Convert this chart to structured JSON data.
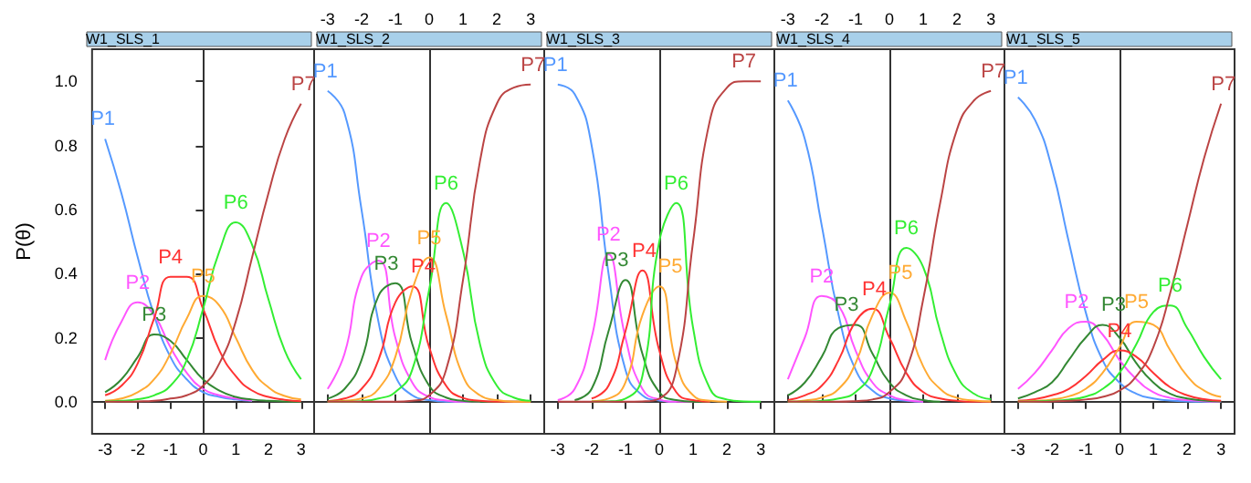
{
  "chart_data": [
    {
      "type": "line",
      "title": "W1_SLS_1",
      "ylabel": "P(θ)",
      "marker": "none",
      "xlim": [
        -3.4,
        3.4
      ],
      "xticks": [
        -3,
        -2,
        -1,
        0,
        1,
        2,
        3
      ],
      "ylim": [
        -0.1,
        1.1
      ],
      "yticks": [
        {
          "value": 0,
          "label": "0.0"
        },
        {
          "value": 0.2,
          "label": "0.2"
        },
        {
          "value": 0.4,
          "label": "0.4"
        },
        {
          "value": 0.6,
          "label": "0.6"
        },
        {
          "value": 0.8,
          "label": "0.8"
        },
        {
          "value": 1,
          "label": "1.0"
        }
      ],
      "x": [
        -3,
        -2.5,
        -2,
        -1.5,
        -1,
        -0.5,
        0,
        0.5,
        1,
        1.5,
        2,
        2.5,
        3
      ],
      "series": [
        {
          "name": "P1",
          "color": "#5599ff",
          "values": [
            0.82,
            0.65,
            0.45,
            0.27,
            0.14,
            0.07,
            0.03,
            0.015,
            0.007,
            0.003,
            null,
            null,
            null
          ]
        },
        {
          "name": "P2",
          "color": "#ff55ff",
          "values": [
            0.13,
            0.25,
            0.31,
            0.27,
            0.17,
            0.09,
            0.04,
            0.02,
            0.01,
            0.004,
            null,
            null,
            null
          ]
        },
        {
          "name": "P3",
          "color": "#338833",
          "values": [
            0.03,
            0.07,
            0.14,
            0.21,
            0.19,
            0.13,
            0.07,
            0.035,
            0.015,
            0.007,
            0.003,
            0.001,
            0
          ]
        },
        {
          "name": "P4",
          "color": "#ff3333",
          "values": [
            0.02,
            0.05,
            0.12,
            0.26,
            0.39,
            0.39,
            0.29,
            0.16,
            0.08,
            0.035,
            0.015,
            0.006,
            0.002
          ]
        },
        {
          "name": "P5",
          "color": "#ffaa33",
          "values": [
            0.003,
            0.01,
            0.03,
            0.07,
            0.15,
            0.26,
            0.33,
            0.3,
            0.2,
            0.1,
            0.045,
            0.018,
            0.007
          ]
        },
        {
          "name": "P6",
          "color": "#33ee33",
          "values": [
            0.001,
            0.003,
            0.008,
            0.02,
            0.05,
            0.13,
            0.29,
            0.47,
            0.56,
            0.49,
            0.32,
            0.16,
            0.07
          ]
        },
        {
          "name": "P7",
          "color": "#bb4444",
          "values": [
            0,
            0,
            0.001,
            0.003,
            0.01,
            0.02,
            0.05,
            0.12,
            0.25,
            0.45,
            0.65,
            0.82,
            0.93
          ]
        }
      ]
    },
    {
      "type": "line",
      "title": "W1_SLS_2",
      "marker": "none",
      "tick_labels": "x",
      "xlim": [
        -3.4,
        3.4
      ],
      "xticks": [
        -3,
        -2,
        -1,
        0,
        1,
        2,
        3
      ],
      "ylim": [
        -0.1,
        1.1
      ],
      "x": [
        -3,
        -2.5,
        -2,
        -1.5,
        -1,
        -0.5,
        0,
        0.5,
        1,
        1.5,
        2,
        2.5,
        3
      ],
      "series": [
        {
          "name": "P1",
          "color": "#5599ff",
          "values": [
            0.97,
            0.9,
            0.6,
            0.25,
            0.08,
            0.02,
            0.005,
            0,
            0,
            0,
            null,
            null,
            null
          ]
        },
        {
          "name": "P2",
          "color": "#ff55ff",
          "values": [
            0.04,
            0.15,
            0.39,
            0.44,
            0.2,
            0.06,
            0.015,
            0.004,
            0,
            0,
            null,
            null,
            null
          ]
        },
        {
          "name": "P3",
          "color": "#338833",
          "values": [
            0.01,
            0.04,
            0.13,
            0.33,
            0.37,
            0.18,
            0.05,
            0.013,
            0.003,
            0,
            0,
            0,
            0
          ]
        },
        {
          "name": "P4",
          "color": "#ff3333",
          "values": [
            0.002,
            0.01,
            0.04,
            0.13,
            0.31,
            0.36,
            0.17,
            0.05,
            0.012,
            0.003,
            0,
            0,
            0
          ]
        },
        {
          "name": "P5",
          "color": "#ffaa33",
          "values": [
            0,
            0.003,
            0.01,
            0.04,
            0.14,
            0.35,
            0.45,
            0.27,
            0.08,
            0.02,
            0.005,
            0,
            0
          ]
        },
        {
          "name": "P6",
          "color": "#33ee33",
          "values": [
            0,
            0,
            0.002,
            0.01,
            0.03,
            0.1,
            0.35,
            0.62,
            0.47,
            0.18,
            0.05,
            0.013,
            0.003
          ]
        },
        {
          "name": "P7",
          "color": "#bb4444",
          "values": [
            0,
            0,
            0,
            0,
            0,
            0.003,
            0.02,
            0.1,
            0.38,
            0.75,
            0.93,
            0.98,
            0.99
          ]
        }
      ]
    },
    {
      "type": "line",
      "title": "W1_SLS_3",
      "marker": "none",
      "tick_labels": "x",
      "xlim": [
        -3.4,
        3.4
      ],
      "xticks": [
        -3,
        -2,
        -1,
        0,
        1,
        2,
        3
      ],
      "ylim": [
        -0.1,
        1.1
      ],
      "x": [
        -3,
        -2.5,
        -2,
        -1.5,
        -1,
        -0.5,
        0,
        0.5,
        1,
        1.5,
        2,
        2.5,
        3
      ],
      "series": [
        {
          "name": "P1",
          "color": "#5599ff",
          "values": [
            0.99,
            0.96,
            0.8,
            0.4,
            0.1,
            0.02,
            0.004,
            0,
            null,
            null,
            null,
            null,
            null
          ]
        },
        {
          "name": "P2",
          "color": "#ff55ff",
          "values": [
            0.005,
            0.04,
            0.2,
            0.46,
            0.2,
            0.04,
            0.007,
            0,
            0,
            null,
            null,
            null,
            null
          ]
        },
        {
          "name": "P3",
          "color": "#338833",
          "values": [
            null,
            0.005,
            0.04,
            0.22,
            0.38,
            0.15,
            0.03,
            0.005,
            0,
            0,
            null,
            null,
            null
          ]
        },
        {
          "name": "P4",
          "color": "#ff3333",
          "values": [
            null,
            null,
            0.01,
            0.05,
            0.22,
            0.41,
            0.16,
            0.03,
            0.005,
            0,
            null,
            null,
            null
          ]
        },
        {
          "name": "P5",
          "color": "#ffaa33",
          "values": [
            null,
            null,
            0.002,
            0.01,
            0.06,
            0.27,
            0.36,
            0.12,
            0.02,
            0.003,
            0,
            null,
            null
          ]
        },
        {
          "name": "P6",
          "color": "#33ee33",
          "values": [
            null,
            null,
            0,
            0.001,
            0.01,
            0.08,
            0.5,
            0.62,
            0.23,
            0.04,
            0.007,
            0.001,
            0
          ]
        },
        {
          "name": "P7",
          "color": "#bb4444",
          "values": [
            0,
            0,
            0,
            0,
            0,
            0.001,
            0.01,
            0.1,
            0.5,
            0.88,
            0.98,
            1,
            1
          ]
        }
      ]
    },
    {
      "type": "line",
      "title": "W1_SLS_4",
      "marker": "none",
      "tick_labels": "x",
      "xlim": [
        -3.4,
        3.4
      ],
      "xticks": [
        -3,
        -2,
        -1,
        0,
        1,
        2,
        3
      ],
      "ylim": [
        -0.1,
        1.1
      ],
      "x": [
        -3,
        -2.5,
        -2,
        -1.5,
        -1,
        -0.5,
        0,
        0.5,
        1,
        1.5,
        2,
        2.5,
        3
      ],
      "series": [
        {
          "name": "P1",
          "color": "#5599ff",
          "values": [
            0.94,
            0.82,
            0.55,
            0.27,
            0.1,
            0.035,
            0.01,
            0.003,
            0,
            null,
            null,
            null,
            null
          ]
        },
        {
          "name": "P2",
          "color": "#ff55ff",
          "values": [
            0.07,
            0.2,
            0.33,
            0.3,
            0.16,
            0.06,
            0.02,
            0.005,
            0,
            null,
            null,
            null,
            null
          ]
        },
        {
          "name": "P3",
          "color": "#338833",
          "values": [
            0.02,
            0.06,
            0.14,
            0.23,
            0.24,
            0.15,
            0.06,
            0.02,
            0.005,
            0,
            null,
            null,
            null
          ]
        },
        {
          "name": "P4",
          "color": "#ff3333",
          "values": [
            0.005,
            0.02,
            0.05,
            0.13,
            0.25,
            0.29,
            0.2,
            0.09,
            0.03,
            0.01,
            0.003,
            0,
            0
          ]
        },
        {
          "name": "P5",
          "color": "#ffaa33",
          "values": [
            0,
            0.004,
            0.013,
            0.04,
            0.12,
            0.27,
            0.34,
            0.25,
            0.11,
            0.04,
            0.012,
            0.004,
            0.001
          ]
        },
        {
          "name": "P6",
          "color": "#33ee33",
          "values": [
            0,
            0,
            0.003,
            0.01,
            0.03,
            0.1,
            0.3,
            0.48,
            0.42,
            0.22,
            0.08,
            0.025,
            0.008
          ]
        },
        {
          "name": "P7",
          "color": "#bb4444",
          "values": [
            0,
            0,
            0,
            0,
            0.002,
            0.007,
            0.03,
            0.1,
            0.32,
            0.62,
            0.85,
            0.94,
            0.97
          ]
        }
      ]
    },
    {
      "type": "line",
      "title": "W1_SLS_5",
      "marker": "none",
      "tick_labels": "x",
      "xlim": [
        -3.4,
        3.4
      ],
      "xticks": [
        -3,
        -2,
        -1,
        0,
        1,
        2,
        3
      ],
      "ylim": [
        -0.1,
        1.1
      ],
      "x": [
        -3,
        -2.5,
        -2,
        -1.5,
        -1,
        -0.5,
        0,
        0.5,
        1,
        1.5,
        2,
        2.5,
        3
      ],
      "series": [
        {
          "name": "P1",
          "color": "#5599ff",
          "values": [
            0.95,
            0.88,
            0.73,
            0.5,
            0.28,
            0.13,
            0.06,
            0.025,
            0.01,
            0.004,
            0.001,
            0,
            0
          ]
        },
        {
          "name": "P2",
          "color": "#ff55ff",
          "values": [
            0.04,
            0.09,
            0.16,
            0.23,
            0.25,
            0.21,
            0.13,
            0.07,
            0.03,
            0.012,
            0.005,
            0.002,
            0
          ]
        },
        {
          "name": "P3",
          "color": "#338833",
          "values": [
            0.01,
            0.03,
            0.06,
            0.13,
            0.2,
            0.24,
            0.2,
            0.12,
            0.06,
            0.025,
            0.01,
            0.004,
            0.001
          ]
        },
        {
          "name": "P4",
          "color": "#ff3333",
          "values": [
            0.003,
            0.008,
            0.02,
            0.04,
            0.08,
            0.13,
            0.16,
            0.14,
            0.09,
            0.045,
            0.02,
            0.008,
            0.003
          ]
        },
        {
          "name": "P5",
          "color": "#ffaa33",
          "values": [
            0.001,
            0.003,
            0.007,
            0.017,
            0.04,
            0.09,
            0.17,
            0.25,
            0.24,
            0.16,
            0.08,
            0.035,
            0.015
          ]
        },
        {
          "name": "P6",
          "color": "#33ee33",
          "values": [
            0,
            0.001,
            0.003,
            0.007,
            0.016,
            0.04,
            0.09,
            0.18,
            0.28,
            0.3,
            0.23,
            0.14,
            0.07
          ]
        },
        {
          "name": "P7",
          "color": "#bb4444",
          "values": [
            0,
            0,
            0.001,
            0.003,
            0.007,
            0.015,
            0.035,
            0.08,
            0.17,
            0.34,
            0.55,
            0.76,
            0.93
          ]
        }
      ]
    }
  ]
}
